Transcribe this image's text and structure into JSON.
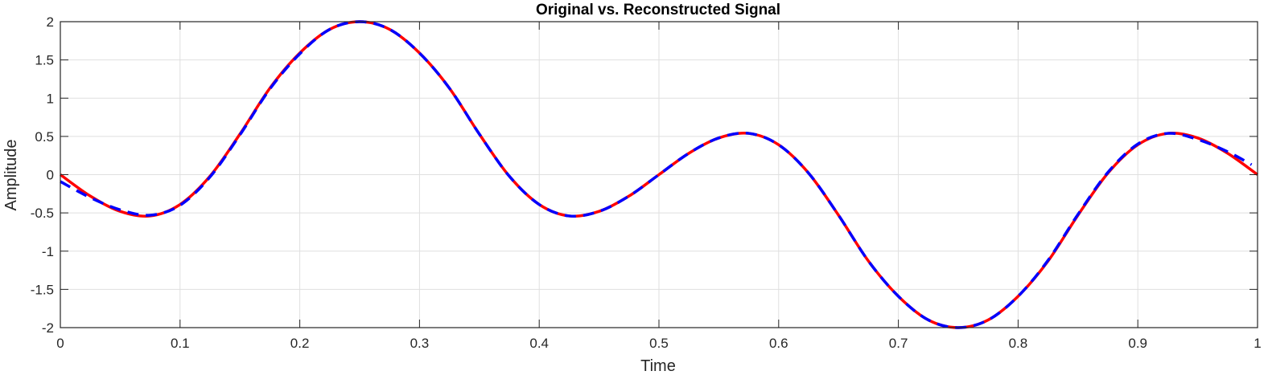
{
  "chart_data": {
    "type": "line",
    "title": "Original vs. Reconstructed Signal",
    "xlabel": "Time",
    "ylabel": "Amplitude",
    "xlim": [
      0,
      1
    ],
    "ylim": [
      -2,
      2
    ],
    "grid": true,
    "xticks": [
      0,
      0.1,
      0.2,
      0.3,
      0.4,
      0.5,
      0.6,
      0.7,
      0.8,
      0.9,
      1
    ],
    "xtick_labels": [
      "0",
      "0.1",
      "0.2",
      "0.3",
      "0.4",
      "0.5",
      "0.6",
      "0.7",
      "0.8",
      "0.9",
      "1"
    ],
    "yticks": [
      2,
      1.5,
      1,
      0.5,
      0,
      -0.5,
      -1,
      -1.5,
      -2
    ],
    "ytick_labels": [
      "2",
      "1.5",
      "1",
      "0.5",
      "0",
      "-0.5",
      "-1",
      "-1.5",
      "-2"
    ],
    "series": [
      {
        "style": "solid",
        "color": "#ff0000",
        "x": [
          0,
          0.025,
          0.05,
          0.075,
          0.1,
          0.125,
          0.15,
          0.175,
          0.2,
          0.225,
          0.25,
          0.275,
          0.3,
          0.325,
          0.35,
          0.375,
          0.4,
          0.425,
          0.45,
          0.475,
          0.5,
          0.525,
          0.55,
          0.575,
          0.6,
          0.625,
          0.65,
          0.675,
          0.7,
          0.725,
          0.75,
          0.775,
          0.8,
          0.825,
          0.85,
          0.875,
          0.9,
          0.925,
          0.95,
          0.975,
          1
        ],
        "y": [
          0,
          -0.28,
          -0.48,
          -0.54,
          -0.39,
          -0.02,
          0.53,
          1.13,
          1.59,
          1.9,
          2.0,
          1.9,
          1.59,
          1.13,
          0.53,
          -0.02,
          -0.39,
          -0.54,
          -0.48,
          -0.28,
          0,
          0.28,
          0.48,
          0.54,
          0.39,
          0.02,
          -0.53,
          -1.13,
          -1.59,
          -1.9,
          -2.0,
          -1.9,
          -1.59,
          -1.13,
          -0.53,
          0.02,
          0.39,
          0.54,
          0.48,
          0.28,
          0
        ]
      },
      {
        "style": "dashed",
        "color": "#0000ff",
        "x": [
          0,
          0.025,
          0.05,
          0.075,
          0.1,
          0.125,
          0.15,
          0.175,
          0.2,
          0.225,
          0.25,
          0.275,
          0.3,
          0.325,
          0.35,
          0.375,
          0.4,
          0.425,
          0.45,
          0.475,
          0.5,
          0.525,
          0.55,
          0.575,
          0.6,
          0.625,
          0.65,
          0.675,
          0.7,
          0.725,
          0.75,
          0.775,
          0.8,
          0.825,
          0.85,
          0.875,
          0.9,
          0.925,
          0.95,
          0.975,
          0.995
        ],
        "y": [
          -0.09,
          -0.3,
          -0.46,
          -0.53,
          -0.4,
          -0.03,
          0.52,
          1.12,
          1.58,
          1.9,
          2.0,
          1.9,
          1.59,
          1.13,
          0.53,
          -0.02,
          -0.39,
          -0.54,
          -0.48,
          -0.28,
          0,
          0.28,
          0.48,
          0.54,
          0.39,
          0.02,
          -0.53,
          -1.13,
          -1.59,
          -1.9,
          -2.0,
          -1.9,
          -1.59,
          -1.12,
          -0.52,
          0.03,
          0.4,
          0.54,
          0.46,
          0.3,
          0.13
        ]
      }
    ]
  }
}
